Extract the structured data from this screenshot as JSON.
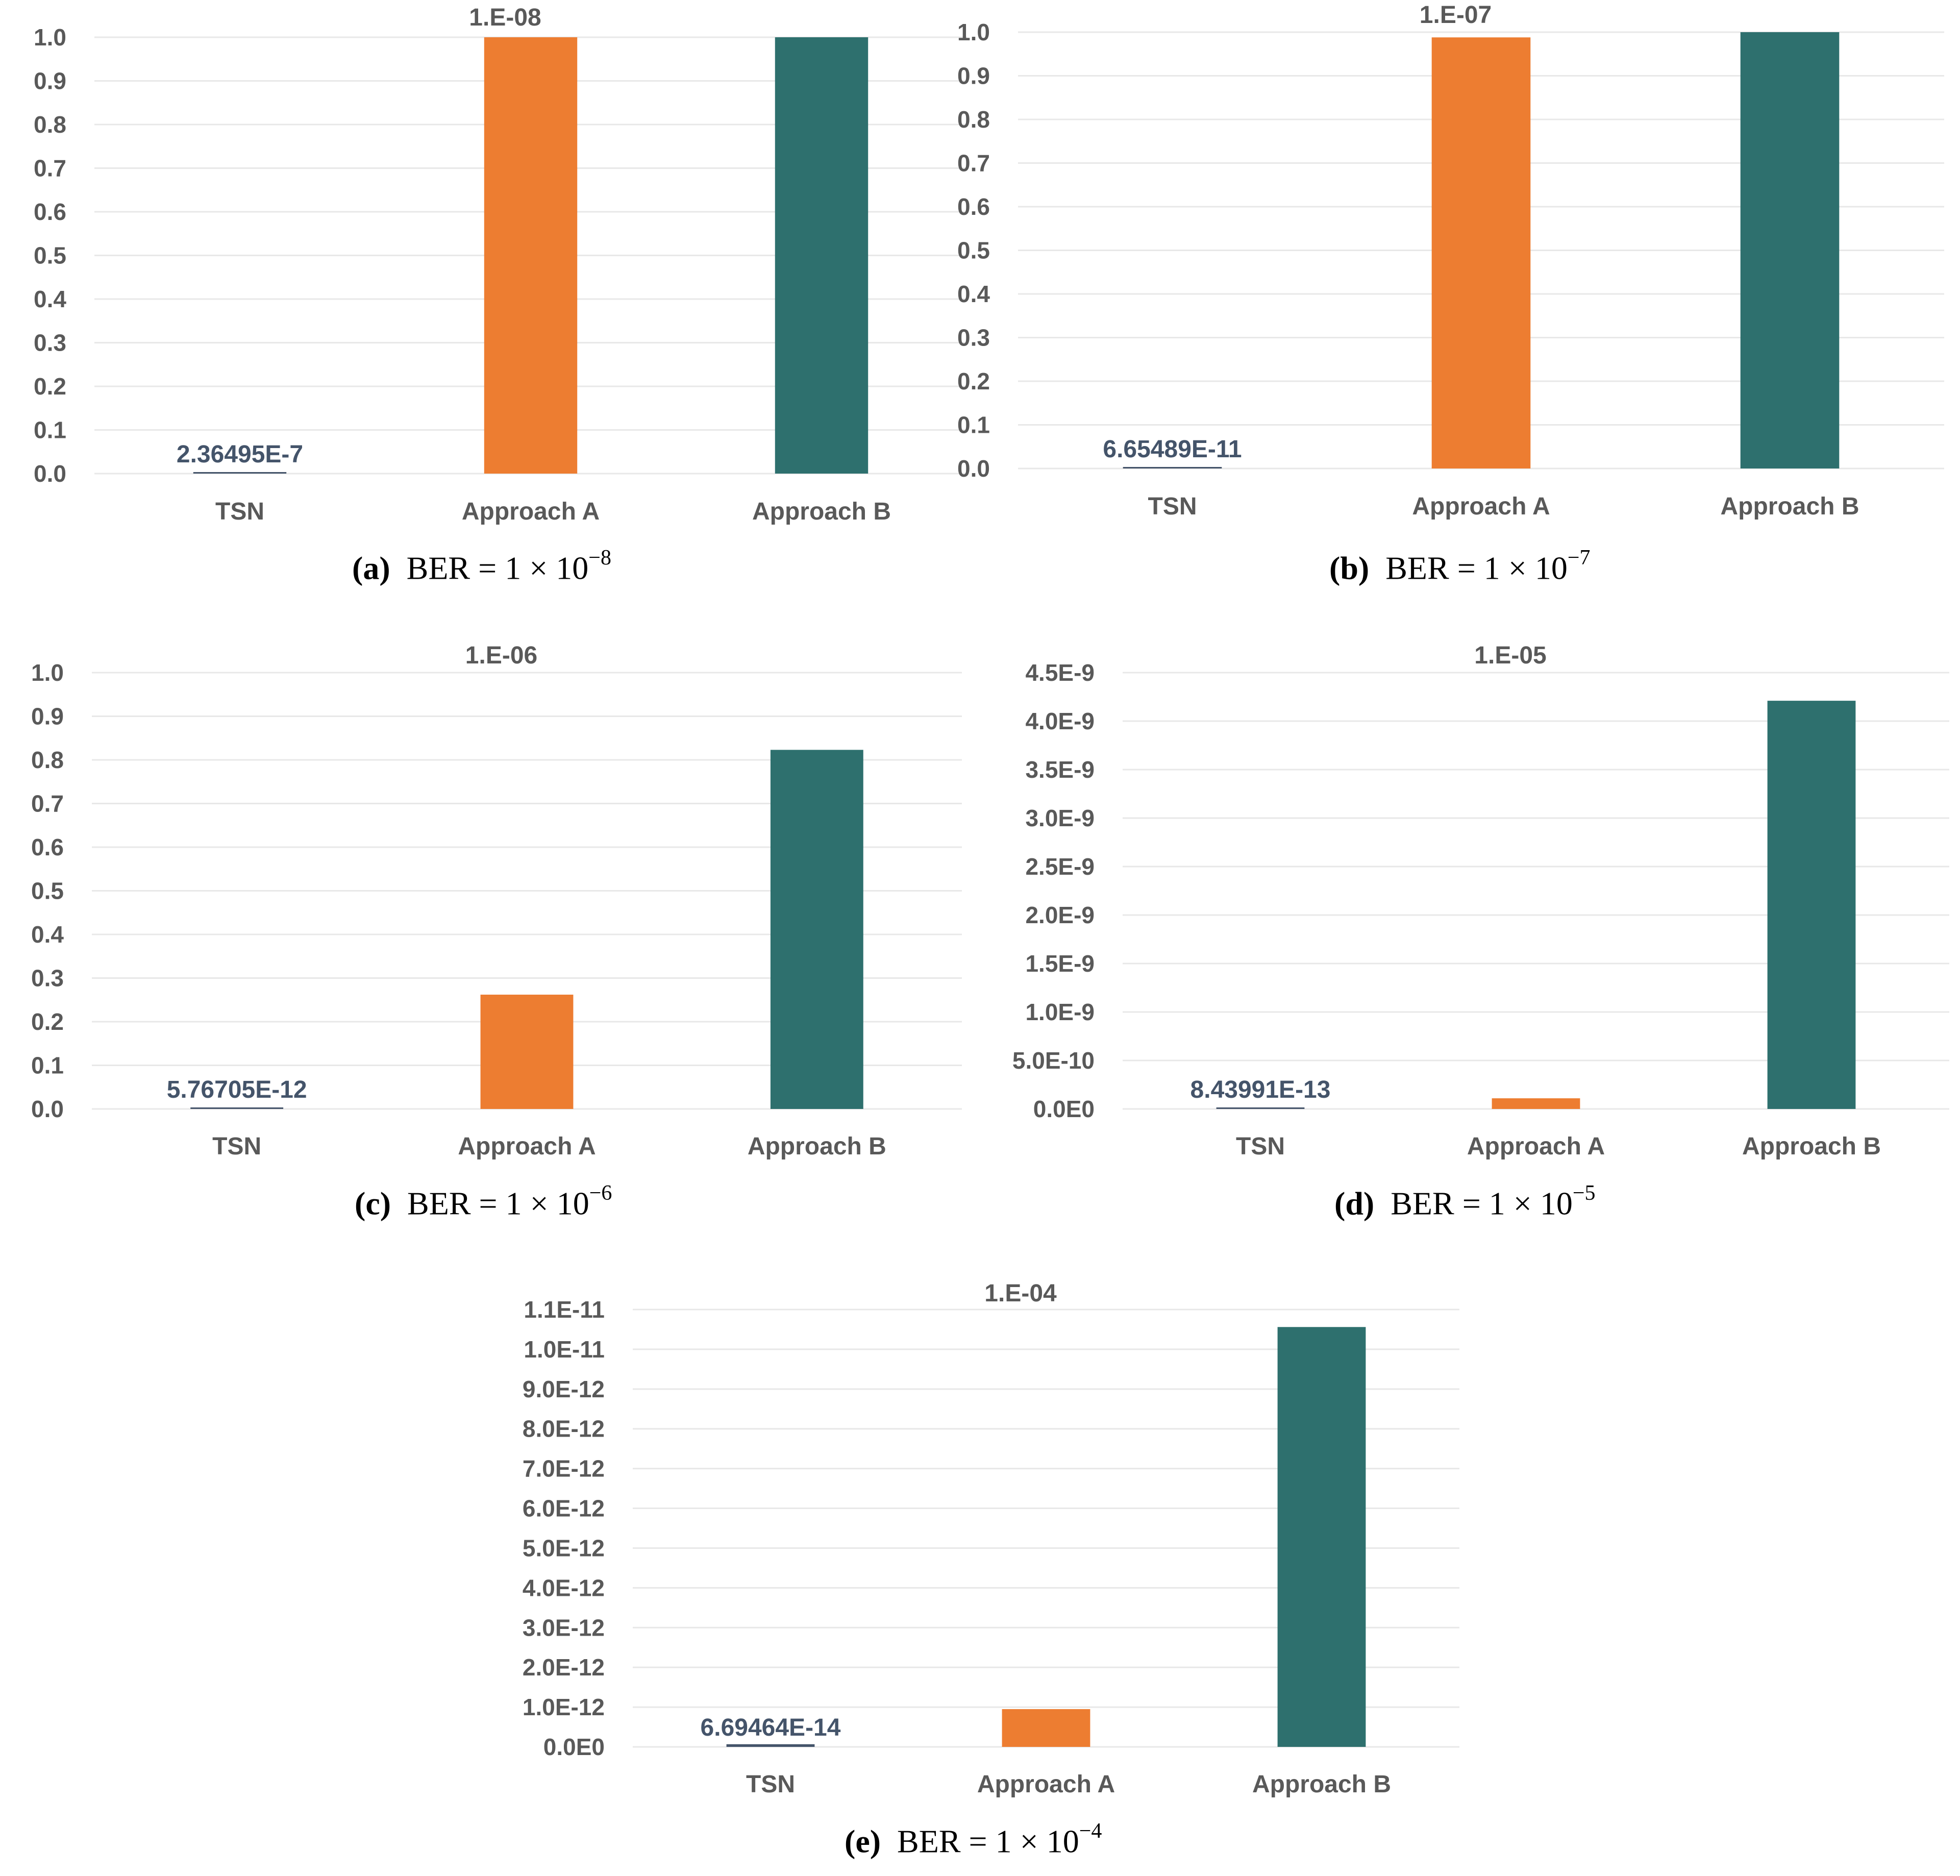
{
  "colors": {
    "tsn": "#44546a",
    "approach_a": "#ed7d31",
    "approach_b": "#2e706e",
    "grid": "#e8e8e8",
    "text": "#595959"
  },
  "chart_data": [
    {
      "type": "bar",
      "title": "1.E-08",
      "categories": [
        "TSN",
        "Approach A",
        "Approach B"
      ],
      "values": [
        2.36495e-07,
        1.0,
        1.0
      ],
      "data_labels": [
        "2.36495E-7",
        "",
        ""
      ],
      "ylim": [
        0,
        1.0
      ],
      "yticks": [
        "0.0",
        "0.1",
        "0.2",
        "0.3",
        "0.4",
        "0.5",
        "0.6",
        "0.7",
        "0.8",
        "0.9",
        "1.0"
      ],
      "grid": true,
      "caption": {
        "tag": "(a)",
        "text": "BER = 1 × 10",
        "exp": "−8"
      }
    },
    {
      "type": "bar",
      "title": "1.E-07",
      "categories": [
        "TSN",
        "Approach A",
        "Approach B"
      ],
      "values": [
        6.65489e-11,
        0.988,
        1.0
      ],
      "data_labels": [
        "6.65489E-11",
        "",
        ""
      ],
      "ylim": [
        0,
        1.0
      ],
      "yticks": [
        "0.0",
        "0.1",
        "0.2",
        "0.3",
        "0.4",
        "0.5",
        "0.6",
        "0.7",
        "0.8",
        "0.9",
        "1.0"
      ],
      "grid": true,
      "caption": {
        "tag": "(b)",
        "text": "BER = 1 × 10",
        "exp": "−7"
      }
    },
    {
      "type": "bar",
      "title": "1.E-06",
      "categories": [
        "TSN",
        "Approach A",
        "Approach B"
      ],
      "values": [
        5.76705e-12,
        0.262,
        0.823
      ],
      "data_labels": [
        "5.76705E-12",
        "",
        ""
      ],
      "ylim": [
        0,
        1.0
      ],
      "yticks": [
        "0.0",
        "0.1",
        "0.2",
        "0.3",
        "0.4",
        "0.5",
        "0.6",
        "0.7",
        "0.8",
        "0.9",
        "1.0"
      ],
      "grid": true,
      "caption": {
        "tag": "(c)",
        "text": "BER = 1 × 10",
        "exp": "−6"
      }
    },
    {
      "type": "bar",
      "title": "1.E-05",
      "categories": [
        "TSN",
        "Approach A",
        "Approach B"
      ],
      "values": [
        8.43991e-13,
        1.1e-10,
        4.21e-09
      ],
      "data_labels": [
        "8.43991E-13",
        "",
        ""
      ],
      "ylim": [
        0,
        4.5e-09
      ],
      "yticks": [
        "0.0E0",
        "5.0E-10",
        "1.0E-9",
        "1.5E-9",
        "2.0E-9",
        "2.5E-9",
        "3.0E-9",
        "3.5E-9",
        "4.0E-9",
        "4.5E-9"
      ],
      "grid": true,
      "caption": {
        "tag": "(d)",
        "text": "BER = 1 × 10",
        "exp": "−5"
      }
    },
    {
      "type": "bar",
      "title": "1.E-04",
      "categories": [
        "TSN",
        "Approach A",
        "Approach B"
      ],
      "values": [
        6.69464e-14,
        9.5e-13,
        1.056e-11
      ],
      "data_labels": [
        "6.69464E-14",
        "",
        ""
      ],
      "ylim": [
        0,
        1.1e-11
      ],
      "yticks": [
        "0.0E0",
        "1.0E-12",
        "2.0E-12",
        "3.0E-12",
        "4.0E-12",
        "5.0E-12",
        "6.0E-12",
        "7.0E-12",
        "8.0E-12",
        "9.0E-12",
        "1.0E-11",
        "1.1E-11"
      ],
      "grid": true,
      "caption": {
        "tag": "(e)",
        "text": "BER = 1 × 10",
        "exp": "−4"
      }
    }
  ]
}
